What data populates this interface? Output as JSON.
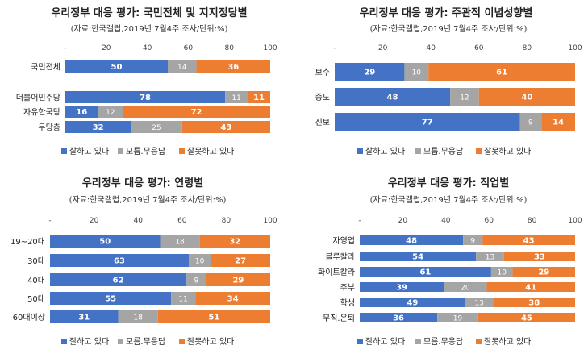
{
  "legend_labels": [
    "잘하고 있다",
    "모름.무응답",
    "잘못하고 있다"
  ],
  "colors": {
    "good": "#4472C4",
    "unknown": "#A5A5A5",
    "bad": "#ED7D31"
  },
  "chart_data": [
    {
      "type": "bar",
      "stacked": true,
      "orientation": "horizontal",
      "title": "우리정부 대응 평가: 국민전체 및 지지정당별",
      "subtitle": "(자료:한국갤럽,2019년 7월4주 조사/단위:%)",
      "categories": [
        "국민전체",
        "",
        "더불어민주당",
        "자유한국당",
        "무당층"
      ],
      "series": [
        {
          "name": "잘하고 있다",
          "values": [
            50,
            null,
            78,
            16,
            32
          ]
        },
        {
          "name": "모름.무응답",
          "values": [
            14,
            null,
            11,
            12,
            25
          ]
        },
        {
          "name": "잘못하고 있다",
          "values": [
            36,
            null,
            11,
            72,
            43
          ]
        }
      ],
      "xlim": [
        0,
        100
      ],
      "xticks": [
        "-",
        "20",
        "40",
        "60",
        "80",
        "100"
      ],
      "legend": "bottom"
    },
    {
      "type": "bar",
      "stacked": true,
      "orientation": "horizontal",
      "title": "우리정부 대응 평가: 주관적 이념성향별",
      "subtitle": "(자료:한국갤럽,2019년 7월4주 조사/단위:%)",
      "categories": [
        "보수",
        "중도",
        "진보"
      ],
      "series": [
        {
          "name": "잘하고 있다",
          "values": [
            29,
            48,
            77
          ]
        },
        {
          "name": "모름.무응답",
          "values": [
            10,
            12,
            9
          ]
        },
        {
          "name": "잘못하고 있다",
          "values": [
            61,
            40,
            14
          ]
        }
      ],
      "xlim": [
        0,
        100
      ],
      "xticks": [
        "-",
        "20",
        "40",
        "60",
        "80",
        "100"
      ],
      "legend": "bottom"
    },
    {
      "type": "bar",
      "stacked": true,
      "orientation": "horizontal",
      "title": "우리정부 대응 평가: 연령별",
      "subtitle": "(자료:한국갤럽,2019년 7월4주 조사/단위:%)",
      "categories": [
        "19~20대",
        "30대",
        "40대",
        "50대",
        "60대이상"
      ],
      "series": [
        {
          "name": "잘하고 있다",
          "values": [
            50,
            63,
            62,
            55,
            31
          ]
        },
        {
          "name": "모름.무응답",
          "values": [
            18,
            10,
            9,
            11,
            18
          ]
        },
        {
          "name": "잘못하고 있다",
          "values": [
            32,
            27,
            29,
            34,
            51
          ]
        }
      ],
      "xlim": [
        0,
        100
      ],
      "xticks": [
        "-",
        "20",
        "40",
        "60",
        "80",
        "100"
      ],
      "legend": "bottom"
    },
    {
      "type": "bar",
      "stacked": true,
      "orientation": "horizontal",
      "title": "우리정부 대응 평가: 직업별",
      "subtitle": "(자료:한국갤럽,2019년 7월4주 조사/단위:%)",
      "categories": [
        "자영업",
        "블루칼라",
        "화이트칼라",
        "주부",
        "학생",
        "무직.은퇴"
      ],
      "series": [
        {
          "name": "잘하고 있다",
          "values": [
            48,
            54,
            61,
            39,
            49,
            36
          ]
        },
        {
          "name": "모름.무응답",
          "values": [
            9,
            13,
            10,
            20,
            13,
            19
          ]
        },
        {
          "name": "잘못하고 있다",
          "values": [
            43,
            33,
            29,
            41,
            38,
            45
          ]
        }
      ],
      "xlim": [
        0,
        100
      ],
      "xticks": [
        "-",
        "20",
        "40",
        "60",
        "80",
        "100"
      ],
      "legend": "bottom"
    }
  ]
}
